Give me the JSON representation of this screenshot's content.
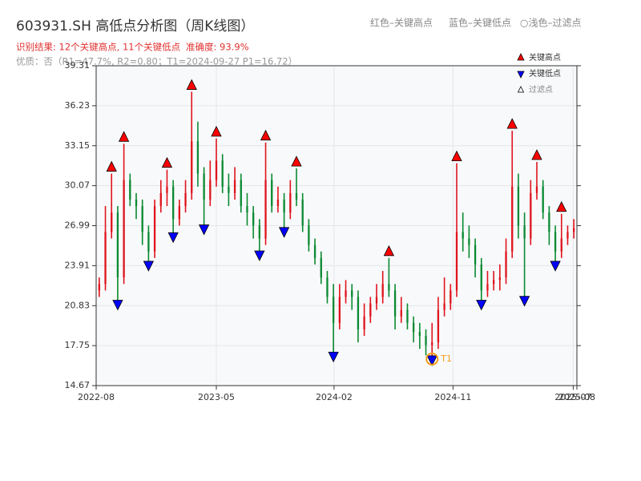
{
  "chart_data": {
    "type": "candlestick",
    "title": "603931.SH 高低点分析图（周K线图）",
    "header_legend": [
      "红色–关键高点",
      "蓝色–关键低点",
      "○浅色–过滤点"
    ],
    "result_text": "识别结果: 12个关键高点, 11个关键低点",
    "accuracy_text": "准确度: 93.9%",
    "quality_text": "优质：否（R1=47.7%, R2=0.80；T1=2024-09-27 P1=16.72）",
    "categories": [
      null,
      null,
      null,
      null,
      null,
      null,
      null,
      null,
      null,
      null,
      null,
      null,
      null,
      null,
      null,
      null,
      null,
      null,
      null,
      null,
      null,
      null,
      null,
      null,
      null,
      null,
      null,
      null,
      null,
      null,
      null,
      null,
      null,
      null,
      null,
      null,
      null,
      null,
      null,
      null,
      null,
      null,
      null,
      null,
      null,
      null,
      null,
      null,
      null,
      null,
      null,
      null,
      null,
      null,
      null,
      null,
      null,
      null,
      null,
      null,
      null,
      null,
      null,
      null,
      null,
      null,
      null,
      null,
      null,
      null,
      null,
      null,
      null,
      null,
      null,
      null,
      null,
      null
    ],
    "up_color": "#e0141e",
    "down_color": "#0a8a32",
    "open": [
      22.0,
      22.5,
      26.5,
      28.0,
      23.0,
      30.5,
      29.0,
      28.5,
      26.5,
      25.0,
      28.5,
      29.5,
      30.0,
      27.5,
      28.5,
      29.5,
      33.5,
      31.0,
      29.0,
      30.5,
      32.0,
      30.0,
      29.5,
      30.5,
      28.5,
      28.0,
      27.0,
      26.0,
      30.5,
      28.5,
      29.0,
      28.0,
      29.5,
      29.0,
      27.0,
      25.5,
      24.5,
      23.0,
      21.5,
      19.5,
      21.5,
      22.0,
      21.5,
      19.0,
      20.0,
      21.0,
      21.5,
      22.5,
      22.0,
      20.0,
      20.5,
      19.5,
      18.8,
      18.5,
      17.8,
      18.0,
      20.5,
      21.0,
      22.0,
      26.5,
      26.0,
      25.5,
      24.0,
      22.0,
      22.5,
      22.8,
      23.0,
      25.0,
      30.0,
      27.0,
      26.0,
      29.5,
      30.0,
      28.0,
      26.5,
      25.0,
      26.0,
      26.5
    ],
    "high": [
      23.0,
      28.5,
      31.0,
      28.5,
      33.3,
      31.0,
      29.5,
      29.0,
      27.0,
      29.0,
      30.5,
      31.3,
      30.5,
      29.0,
      30.5,
      37.3,
      35.0,
      31.5,
      32.0,
      33.7,
      32.5,
      31.0,
      31.5,
      31.0,
      29.5,
      28.5,
      27.5,
      33.4,
      31.0,
      30.0,
      29.5,
      30.5,
      31.4,
      29.5,
      27.5,
      26.0,
      25.0,
      23.5,
      22.5,
      22.5,
      22.8,
      22.5,
      22.0,
      21.0,
      21.5,
      22.5,
      23.5,
      24.5,
      22.5,
      21.5,
      21.0,
      20.0,
      19.5,
      19.0,
      19.5,
      21.5,
      23.0,
      22.5,
      31.8,
      28.0,
      27.0,
      26.0,
      24.5,
      23.5,
      23.5,
      24.0,
      26.0,
      34.3,
      31.0,
      28.0,
      30.5,
      31.9,
      30.5,
      28.5,
      27.0,
      27.9,
      27.0,
      27.5
    ],
    "low": [
      21.5,
      22.0,
      26.0,
      21.0,
      22.5,
      28.5,
      27.5,
      25.5,
      24.0,
      24.5,
      28.0,
      28.5,
      26.2,
      27.0,
      28.0,
      29.0,
      30.0,
      26.8,
      28.5,
      30.0,
      29.5,
      28.5,
      29.0,
      28.0,
      27.0,
      26.0,
      24.8,
      25.5,
      28.0,
      28.0,
      26.6,
      27.5,
      28.5,
      26.5,
      25.0,
      24.0,
      22.5,
      21.0,
      17.0,
      19.0,
      21.0,
      20.5,
      18.0,
      18.5,
      19.5,
      20.5,
      21.0,
      21.5,
      19.0,
      19.5,
      19.0,
      18.0,
      17.5,
      17.0,
      16.72,
      17.5,
      20.0,
      20.5,
      21.5,
      25.0,
      24.5,
      23.0,
      21.0,
      21.5,
      22.0,
      22.0,
      22.5,
      24.5,
      26.0,
      21.3,
      25.5,
      29.0,
      27.5,
      25.5,
      24.0,
      24.5,
      25.5,
      26.0
    ],
    "close": [
      22.5,
      26.5,
      28.0,
      23.0,
      30.5,
      29.0,
      28.5,
      26.5,
      25.0,
      28.5,
      29.5,
      30.0,
      27.5,
      28.5,
      29.5,
      33.5,
      31.0,
      29.0,
      30.5,
      32.0,
      30.0,
      29.5,
      30.5,
      28.5,
      28.0,
      27.0,
      26.0,
      30.5,
      28.5,
      29.0,
      28.0,
      29.5,
      29.0,
      27.0,
      25.5,
      24.5,
      23.0,
      21.5,
      19.5,
      21.5,
      22.0,
      21.5,
      19.0,
      20.0,
      21.0,
      21.5,
      22.5,
      22.0,
      20.0,
      20.5,
      19.5,
      18.8,
      18.5,
      17.8,
      18.0,
      20.5,
      21.0,
      22.0,
      26.5,
      26.0,
      25.5,
      24.0,
      22.0,
      22.5,
      22.8,
      23.0,
      25.0,
      30.0,
      27.0,
      26.0,
      29.5,
      30.0,
      28.0,
      26.5,
      25.0,
      26.0,
      26.5,
      26.8
    ],
    "key_highs": {
      "name": "关键高点",
      "color": "#ff0000",
      "x": [
        2,
        4,
        11,
        15,
        19,
        27,
        32,
        47,
        58,
        67,
        71,
        75
      ],
      "values": [
        31.0,
        33.3,
        31.3,
        37.3,
        33.7,
        33.4,
        31.4,
        24.5,
        31.8,
        34.3,
        31.9,
        27.9
      ]
    },
    "key_lows": {
      "name": "关键低点",
      "color": "#0000ff",
      "x": [
        3,
        8,
        12,
        17,
        26,
        30,
        38,
        54,
        62,
        69,
        74
      ],
      "values": [
        21.0,
        24.0,
        26.2,
        26.8,
        24.8,
        26.6,
        17.0,
        16.72,
        21.0,
        21.3,
        24.0
      ]
    },
    "filtered": {
      "name": "过滤点",
      "color": "#ffffff"
    },
    "annotation": {
      "text": "T1",
      "x": 54,
      "value": 16.72,
      "color": "#f59a1a"
    },
    "xlim": [
      -0.5,
      77.5
    ],
    "xticks": [
      {
        "value": -0.5,
        "label": "2022-08"
      },
      {
        "value": 19.0,
        "label": "2023-05"
      },
      {
        "value": 38.1,
        "label": "2024-02"
      },
      {
        "value": 57.4,
        "label": "2024-11"
      },
      {
        "value": 76.9,
        "label": "2025-07"
      },
      {
        "value": 77.5,
        "label": "2025-08"
      }
    ],
    "ylim": [
      14.67,
      39.31
    ],
    "yticks": [
      14.67,
      17.75,
      20.83,
      23.91,
      26.99,
      30.07,
      33.15,
      36.23,
      39.31
    ],
    "grid": true
  }
}
